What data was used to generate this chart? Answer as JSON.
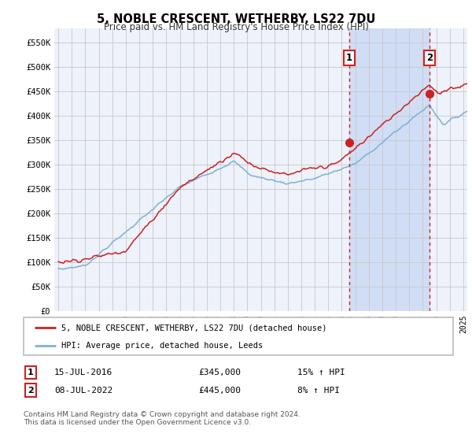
{
  "title": "5, NOBLE CRESCENT, WETHERBY, LS22 7DU",
  "subtitle": "Price paid vs. HM Land Registry's House Price Index (HPI)",
  "ylabel_ticks": [
    "£0",
    "£50K",
    "£100K",
    "£150K",
    "£200K",
    "£250K",
    "£300K",
    "£350K",
    "£400K",
    "£450K",
    "£500K",
    "£550K"
  ],
  "ytick_vals": [
    0,
    50000,
    100000,
    150000,
    200000,
    250000,
    300000,
    350000,
    400000,
    450000,
    500000,
    550000
  ],
  "ylim": [
    0,
    578000
  ],
  "xlim_start": 1994.7,
  "xlim_end": 2025.3,
  "sale1_x": 2016.54,
  "sale1_y": 345000,
  "sale2_x": 2022.52,
  "sale2_y": 445000,
  "vline_color": "#cc2222",
  "hpi_line_color": "#7eb0d4",
  "price_line_color": "#cc2222",
  "legend_label1": "5, NOBLE CRESCENT, WETHERBY, LS22 7DU (detached house)",
  "legend_label2": "HPI: Average price, detached house, Leeds",
  "table_row1": [
    "1",
    "15-JUL-2016",
    "£345,000",
    "15% ↑ HPI"
  ],
  "table_row2": [
    "2",
    "08-JUL-2022",
    "£445,000",
    "8% ↑ HPI"
  ],
  "footnote": "Contains HM Land Registry data © Crown copyright and database right 2024.\nThis data is licensed under the Open Government Licence v3.0.",
  "background_color": "#ffffff",
  "plot_bg_color": "#eef2fa",
  "shade_color": "#d0ddf5",
  "grid_color": "#c8c8c8"
}
